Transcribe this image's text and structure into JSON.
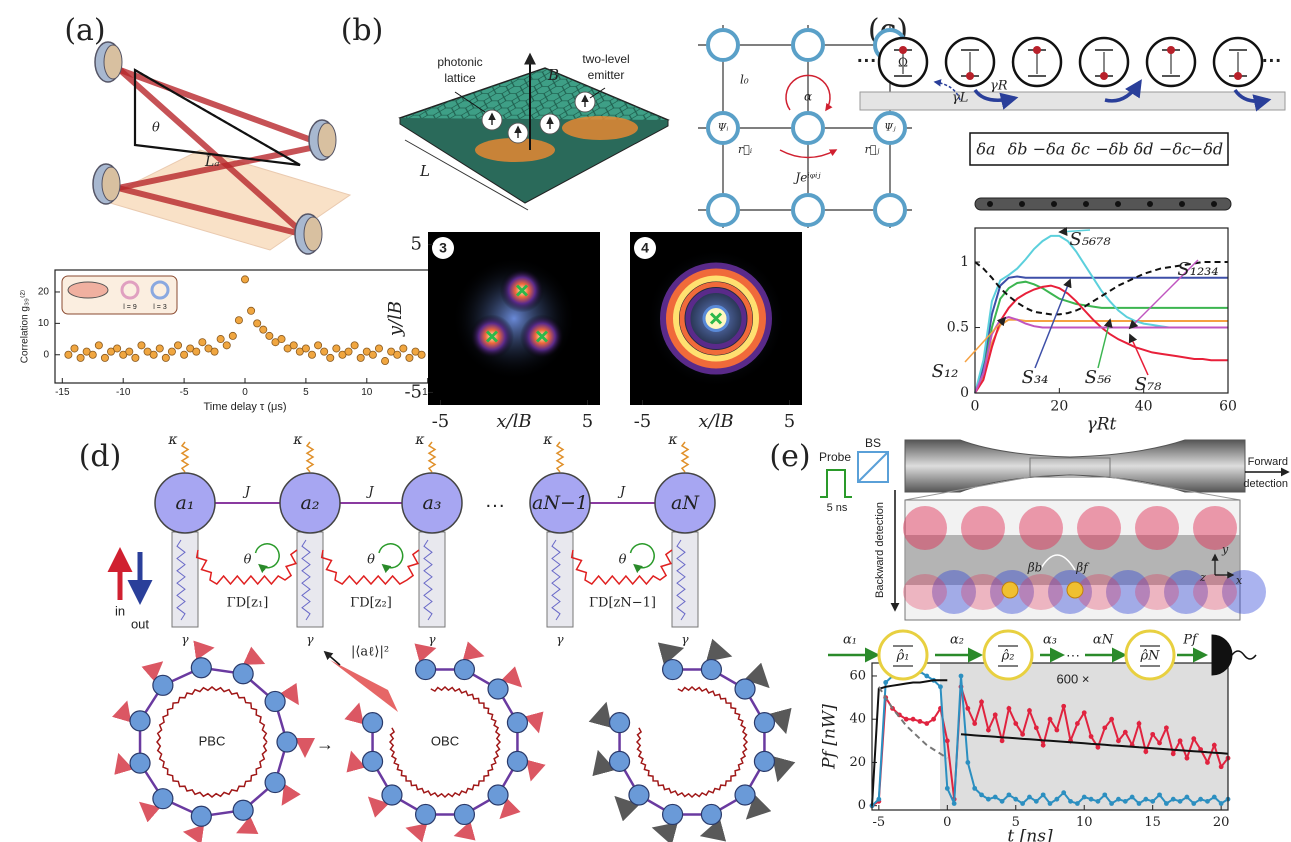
{
  "panel_labels": [
    "(a)",
    "(b)",
    "(c)",
    "(d)",
    "(e)"
  ],
  "panel_a": {
    "angle": "θ",
    "length": "Lₐ",
    "inset_labels": [
      "l = 9",
      "l = 3"
    ]
  },
  "panel_b": {
    "lattice_label": [
      "photonic",
      "lattice"
    ],
    "emitter_label": [
      "two-level",
      "emitter"
    ],
    "field": "B",
    "size": "L",
    "spacing": "l₀",
    "flux": "α",
    "psi_i": "Ψᵢ",
    "psi_j": "Ψⱼ",
    "r_i": "r⃗ᵢ",
    "r_j": "r⃗ⱼ",
    "hopping": "Jeⁱᵠⁱʲ"
  },
  "panel_c": {
    "drive": "Ω",
    "gamma_l": "γL",
    "gamma_r": "γR",
    "detunings": [
      {
        "text": "δa",
        "color": "#f39a36"
      },
      {
        "text": "δb",
        "color": "#3d4fa8"
      },
      {
        "text": "−δa",
        "color": "#f39a36"
      },
      {
        "text": "δc",
        "color": "#3cb550"
      },
      {
        "text": "−δb",
        "color": "#3d4fa8"
      },
      {
        "text": "δd",
        "color": "#e8203a"
      },
      {
        "text": "−δc",
        "color": "#3cb550"
      },
      {
        "text": "−δd",
        "color": "#e8203a"
      }
    ]
  },
  "panel_d": {
    "kappa": "κ",
    "modes": [
      "a₁",
      "a₂",
      "a₃",
      "aN−1",
      "aN"
    ],
    "coupling": "J",
    "phase": "θ",
    "dissipators": [
      "ΓD[z₁]",
      "ΓD[z₂]",
      "ΓD[zN−1]"
    ],
    "gamma": "γ",
    "ellipsis": "···",
    "input": "in",
    "output": "out",
    "amplitude": "|⟨aℓ⟩|²",
    "rings": [
      "PBC",
      "OBC"
    ],
    "arrow": "→"
  },
  "panel_e": {
    "probe": "Probe",
    "splitter": "BS",
    "pulse_width": "5 ns",
    "forward": [
      "Forward",
      "detection"
    ],
    "backward": "Backward detection",
    "beta_b": "βb",
    "beta_f": "βf",
    "axes": [
      "y",
      "z",
      "x"
    ],
    "inputs": [
      "α₁",
      "α₂",
      "α₃",
      "αN"
    ],
    "ellipsis": "···",
    "output": "Pf",
    "states": [
      "ρ̂₁",
      "ρ̂₂",
      "ρ̂N"
    ]
  },
  "chart_data": [
    {
      "type": "scatter",
      "xlabel": "Time delay τ (μs)",
      "ylabel": "Correlation g₃₉⁽²⁾",
      "xlim": [
        -15.6,
        15.6
      ],
      "ylim": [
        -9,
        27
      ],
      "xticks": [
        -15,
        -10,
        -5,
        0,
        5,
        10,
        15
      ],
      "yticks": [
        0,
        10,
        20
      ],
      "color": "#f0a640",
      "x": [
        -14.5,
        -14,
        -13.5,
        -13,
        -12.5,
        -12,
        -11.5,
        -11,
        -10.5,
        -10,
        -9.5,
        -9,
        -8.5,
        -8,
        -7.5,
        -7,
        -6.5,
        -6,
        -5.5,
        -5,
        -4.5,
        -4,
        -3.5,
        -3,
        -2.5,
        -2,
        -1.5,
        -1,
        -0.5,
        0,
        0.5,
        1,
        1.5,
        2,
        2.5,
        3,
        3.5,
        4,
        4.5,
        5,
        5.5,
        6,
        6.5,
        7,
        7.5,
        8,
        8.5,
        9,
        9.5,
        10,
        10.5,
        11,
        11.5,
        12,
        12.5,
        13,
        13.5,
        14,
        14.5
      ],
      "values": [
        0,
        2,
        -1,
        1,
        0,
        3,
        -1,
        1,
        2,
        0,
        1,
        -1,
        3,
        1,
        0,
        2,
        -1,
        1,
        3,
        0,
        2,
        1,
        4,
        2,
        1,
        5,
        3,
        6,
        11,
        24,
        14,
        10,
        8,
        6,
        4,
        5,
        2,
        3,
        1,
        2,
        0,
        3,
        1,
        -1,
        2,
        0,
        1,
        3,
        -1,
        1,
        0,
        2,
        -2,
        1,
        0,
        2,
        -1,
        1,
        0
      ]
    },
    {
      "type": "image",
      "label": "3",
      "xlabel": "x/lB",
      "ylabel": "y/lB",
      "xlim": [
        -5.85,
        5.85
      ],
      "ylim": [
        -5.85,
        5.85
      ],
      "xticks": [
        -5,
        5
      ],
      "yticks": [
        -5,
        5
      ]
    },
    {
      "type": "image",
      "label": "4",
      "xlabel": "x/lB",
      "xlim": [
        -5.85,
        5.85
      ],
      "xticks": [
        -5,
        5
      ]
    },
    {
      "type": "line",
      "xlabel": "γRt",
      "xlim": [
        0,
        60
      ],
      "ylim": [
        0,
        1.26
      ],
      "xticks": [
        0,
        20,
        40,
        60
      ],
      "yticks": [
        0,
        0.5,
        1
      ],
      "x": [
        0,
        2,
        4,
        6,
        8,
        10,
        12,
        14,
        16,
        18,
        20,
        22,
        24,
        26,
        28,
        30,
        32,
        34,
        36,
        38,
        40,
        42,
        44,
        46,
        48,
        50,
        52,
        54,
        56,
        58,
        60
      ],
      "series": [
        {
          "name": "S₁₂",
          "color": "#f5a142",
          "values": [
            0,
            0.12,
            0.38,
            0.52,
            0.56,
            0.56,
            0.55,
            0.55,
            0.55,
            0.55,
            0.55,
            0.55,
            0.55,
            0.55,
            0.55,
            0.55,
            0.55,
            0.55,
            0.55,
            0.55,
            0.55,
            0.55,
            0.55,
            0.55,
            0.55,
            0.55,
            0.55,
            0.55,
            0.55,
            0.55,
            0.55
          ]
        },
        {
          "name": "S₃₄",
          "color": "#3d4fa8",
          "values": [
            0,
            0.2,
            0.6,
            0.82,
            0.88,
            0.89,
            0.88,
            0.88,
            0.88,
            0.88,
            0.88,
            0.88,
            0.88,
            0.88,
            0.88,
            0.88,
            0.88,
            0.88,
            0.88,
            0.88,
            0.88,
            0.88,
            0.88,
            0.88,
            0.88,
            0.88,
            0.88,
            0.88,
            0.88,
            0.88,
            0.88
          ]
        },
        {
          "name": "S₅₆",
          "color": "#3cb550",
          "values": [
            0,
            0.15,
            0.5,
            0.72,
            0.8,
            0.84,
            0.85,
            0.83,
            0.8,
            0.76,
            0.72,
            0.7,
            0.68,
            0.67,
            0.66,
            0.65,
            0.65,
            0.65,
            0.65,
            0.65,
            0.65,
            0.65,
            0.65,
            0.65,
            0.65,
            0.65,
            0.65,
            0.65,
            0.65,
            0.65,
            0.65
          ]
        },
        {
          "name": "S₇₈",
          "color": "#e8203a",
          "values": [
            0,
            0.1,
            0.35,
            0.55,
            0.65,
            0.72,
            0.76,
            0.79,
            0.81,
            0.82,
            0.8,
            0.76,
            0.7,
            0.63,
            0.56,
            0.5,
            0.45,
            0.41,
            0.38,
            0.35,
            0.33,
            0.31,
            0.3,
            0.29,
            0.28,
            0.27,
            0.26,
            0.26,
            0.25,
            0.25,
            0.25
          ]
        },
        {
          "name": "S₅₆₇₈",
          "color": "#5cd0dc",
          "values": [
            0,
            0.25,
            0.7,
            0.86,
            0.9,
            0.95,
            1.02,
            1.1,
            1.16,
            1.2,
            1.2,
            1.16,
            1.08,
            0.98,
            0.88,
            0.78,
            0.7,
            0.63,
            0.58,
            0.55,
            0.53,
            0.52,
            0.51,
            0.5,
            0.5,
            0.5,
            0.5,
            0.5,
            0.5,
            0.5,
            0.5
          ]
        },
        {
          "name": "S₁₂₃₄",
          "color": "#c055c0",
          "values": [
            0,
            0.15,
            0.45,
            0.56,
            0.58,
            0.56,
            0.53,
            0.51,
            0.5,
            0.5,
            0.5,
            0.5,
            0.5,
            0.5,
            0.5,
            0.5,
            0.5,
            0.5,
            0.5,
            0.5,
            0.5,
            0.5,
            0.5,
            0.5,
            0.5,
            0.5,
            0.5,
            0.5,
            0.5,
            0.5,
            0.5
          ]
        },
        {
          "color": "#111111",
          "dashed": true,
          "values": [
            1,
            0.95,
            0.88,
            0.8,
            0.74,
            0.69,
            0.65,
            0.62,
            0.61,
            0.6,
            0.6,
            0.61,
            0.63,
            0.66,
            0.7,
            0.74,
            0.78,
            0.82,
            0.85,
            0.88,
            0.91,
            0.93,
            0.95,
            0.96,
            0.97,
            0.98,
            0.99,
            1,
            1,
            1,
            1
          ]
        }
      ]
    },
    {
      "type": "line",
      "xlabel": "t [ns]",
      "ylabel": "Pf [nW]",
      "annotation": "600 ×",
      "xlim": [
        -5.5,
        20.5
      ],
      "ylim": [
        -2,
        66
      ],
      "xticks": [
        -5,
        0,
        5,
        10,
        15,
        20
      ],
      "yticks": [
        0,
        20,
        40,
        60
      ],
      "x": [
        -5.5,
        -5,
        -4.5,
        -4,
        -3.5,
        -3,
        -2.5,
        -2,
        -1.5,
        -1,
        -0.5,
        0,
        0.5,
        1,
        1.5,
        2,
        2.5,
        3,
        3.5,
        4,
        4.5,
        5,
        5.5,
        6,
        6.5,
        7,
        7.5,
        8,
        8.5,
        9,
        9.5,
        10,
        10.5,
        11,
        11.5,
        12,
        12.5,
        13,
        13.5,
        14,
        14.5,
        15,
        15.5,
        16,
        16.5,
        17,
        17.5,
        18,
        18.5,
        19,
        19.5,
        20,
        20.5
      ],
      "series": [
        {
          "color": "#e0233f",
          "markers": true,
          "values": [
            0,
            2,
            50,
            45,
            42,
            40,
            40,
            39,
            38,
            40,
            45,
            30,
            3,
            55,
            45,
            38,
            48,
            35,
            42,
            30,
            45,
            38,
            33,
            44,
            36,
            28,
            40,
            35,
            46,
            30,
            38,
            43,
            32,
            27,
            36,
            40,
            30,
            34,
            28,
            38,
            25,
            33,
            29,
            36,
            24,
            30,
            22,
            31,
            26,
            20,
            28,
            18,
            22
          ]
        },
        {
          "color": "#2c8fc0",
          "markers": true,
          "values": [
            0,
            3,
            57,
            60,
            61,
            62,
            61,
            62,
            60,
            58,
            55,
            8,
            1,
            60,
            20,
            8,
            5,
            3,
            4,
            2,
            5,
            3,
            1,
            4,
            2,
            5,
            1,
            3,
            6,
            2,
            1,
            4,
            3,
            2,
            5,
            1,
            3,
            2,
            4,
            1,
            3,
            2,
            5,
            1,
            3,
            2,
            4,
            1,
            3,
            2,
            4,
            1,
            3
          ]
        },
        {
          "color": "#111111",
          "values": [
            0,
            54,
            55,
            55.5,
            56,
            56.5,
            57,
            57,
            57.5,
            58,
            58,
            58,
            null,
            33,
            32.8,
            32.5,
            32.3,
            32.1,
            31.9,
            31.6,
            31.4,
            31.2,
            30.9,
            30.7,
            30.5,
            30.2,
            30,
            29.8,
            29.6,
            29.3,
            29.1,
            28.9,
            28.6,
            28.4,
            28.2,
            27.9,
            27.7,
            27.5,
            27.3,
            27,
            26.8,
            26.6,
            26.3,
            26.1,
            25.9,
            25.6,
            25.4,
            25.2,
            25,
            24.7,
            24.5,
            24.3,
            24
          ]
        },
        {
          "color": "#777777",
          "dashed": true,
          "values": [
            null,
            55,
            50,
            45,
            41,
            37,
            34,
            31,
            28,
            26,
            24,
            22,
            null,
            null,
            null,
            null,
            null,
            null,
            null,
            null,
            null,
            null,
            null,
            null,
            null,
            null,
            null,
            null,
            null,
            null,
            null,
            null,
            null,
            null,
            null,
            null,
            null,
            null,
            null,
            null,
            null,
            null,
            null,
            null,
            null,
            null,
            null,
            null,
            null,
            null,
            null,
            null,
            null
          ]
        }
      ]
    }
  ]
}
